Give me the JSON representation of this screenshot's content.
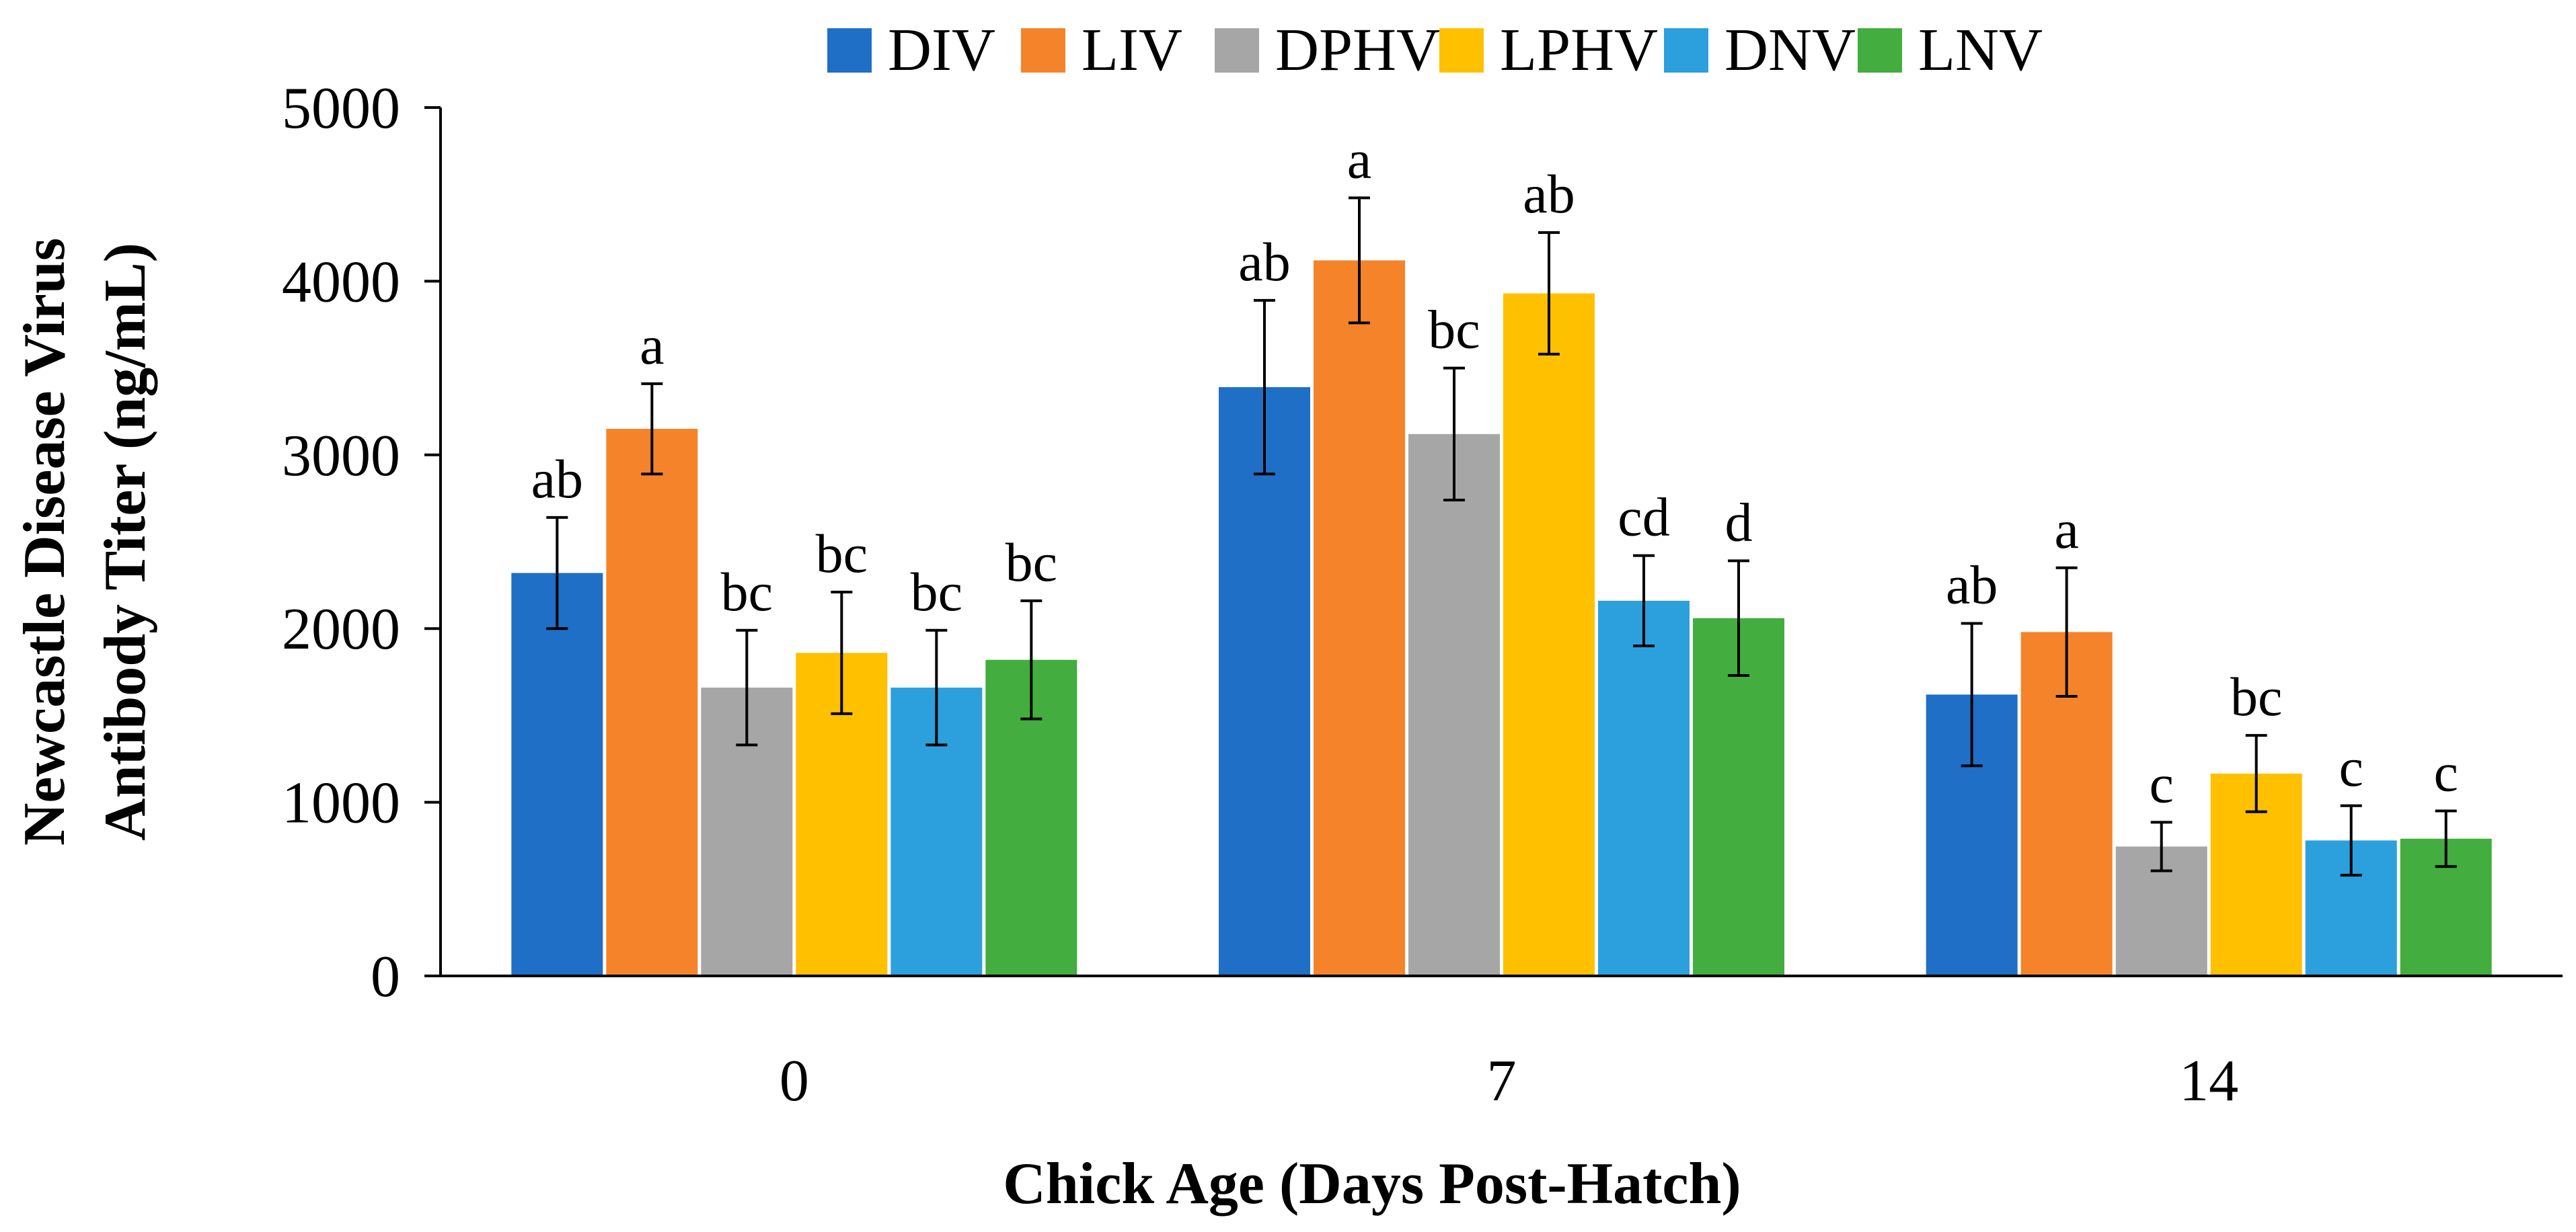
{
  "chart_data": {
    "type": "bar",
    "ylabel_line1": "Newcastle Disease Virus",
    "ylabel_line2": "Antibody Titer (ng/mL)",
    "xlabel": "Chick Age (Days Post-Hatch)",
    "ylim": [
      0,
      5000
    ],
    "yticks": [
      0,
      1000,
      2000,
      3000,
      4000,
      5000
    ],
    "categories": [
      "0",
      "7",
      "14"
    ],
    "legend_position": "top",
    "series": [
      {
        "name": "DIV",
        "color": "#1f6fc6",
        "values": [
          2320,
          3390,
          1620
        ],
        "errors": [
          320,
          500,
          410
        ],
        "labels": [
          "ab",
          "ab",
          "ab"
        ]
      },
      {
        "name": "LIV",
        "color": "#f5832a",
        "values": [
          3150,
          4120,
          1980
        ],
        "errors": [
          260,
          360,
          370
        ],
        "labels": [
          "a",
          "a",
          "a"
        ]
      },
      {
        "name": "DPHV",
        "color": "#a6a6a6",
        "values": [
          1660,
          3120,
          745
        ],
        "errors": [
          330,
          380,
          140
        ],
        "labels": [
          "bc",
          "bc",
          "c"
        ]
      },
      {
        "name": "LPHV",
        "color": "#ffc000",
        "values": [
          1860,
          3930,
          1165
        ],
        "errors": [
          350,
          350,
          220
        ],
        "labels": [
          "bc",
          "ab",
          "bc"
        ]
      },
      {
        "name": "DNV",
        "color": "#2ba0dd",
        "values": [
          1660,
          2160,
          780
        ],
        "errors": [
          330,
          260,
          200
        ],
        "labels": [
          "bc",
          "cd",
          "c"
        ]
      },
      {
        "name": "LNV",
        "color": "#43ad3f",
        "values": [
          1820,
          2060,
          790
        ],
        "errors": [
          340,
          330,
          160
        ],
        "labels": [
          "bc",
          "d",
          "c"
        ]
      }
    ]
  }
}
